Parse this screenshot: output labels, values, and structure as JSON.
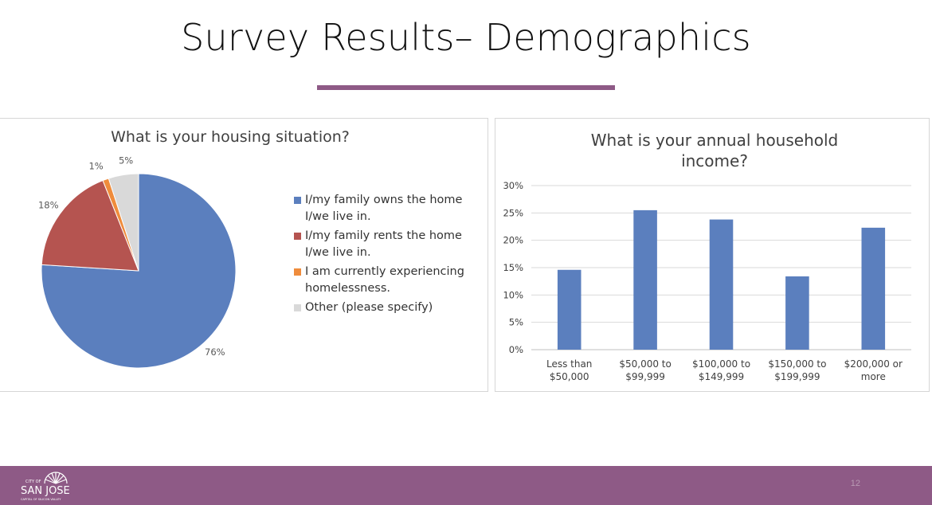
{
  "slide": {
    "title": "Survey Results– Demographics",
    "page_number": "12"
  },
  "colors": {
    "accent": "#8e5a86",
    "footer": "#8e5a86"
  },
  "logo": {
    "icon": "city-of-san-jose-logo",
    "line1": "CITY OF",
    "line2": "SAN JOSE",
    "line3": "CAPITAL OF SILICON VALLEY"
  },
  "chart_data": [
    {
      "type": "pie",
      "title": "What is your housing situation?",
      "slices": [
        {
          "label": "I/my family owns the home I/we live in.",
          "legend_lines": [
            "I/my family owns the home",
            "I/we live in."
          ],
          "value": 76,
          "display": "76%",
          "color": "#5b7fbe"
        },
        {
          "label": "I/my family rents the home I/we live in.",
          "legend_lines": [
            "I/my family rents the home",
            "I/we live in."
          ],
          "value": 18,
          "display": "18%",
          "color": "#b55450"
        },
        {
          "label": "I am currently experiencing homelessness.",
          "legend_lines": [
            "I am currently experiencing",
            "homelessness."
          ],
          "value": 1,
          "display": "1%",
          "color": "#ef8c3c"
        },
        {
          "label": "Other (please specify)",
          "legend_lines": [
            "Other (please specify)"
          ],
          "value": 5,
          "display": "5%",
          "color": "#d9d9d9"
        }
      ],
      "legend_position": "right"
    },
    {
      "type": "bar",
      "title": "What is your annual household income?",
      "title_lines": [
        "What is your annual household",
        "income?"
      ],
      "categories": [
        [
          "Less than",
          "$50,000"
        ],
        [
          "$50,000 to",
          "$99,999"
        ],
        [
          "$100,000 to",
          "$149,999"
        ],
        [
          "$150,000 to",
          "$199,999"
        ],
        [
          "$200,000 or",
          "more"
        ]
      ],
      "values": [
        14.6,
        25.5,
        23.8,
        13.4,
        22.3
      ],
      "ylim": [
        0,
        30
      ],
      "yticks": [
        "0%",
        "5%",
        "10%",
        "15%",
        "20%",
        "25%",
        "30%"
      ],
      "grid": true,
      "color": "#5b7fbe"
    }
  ]
}
